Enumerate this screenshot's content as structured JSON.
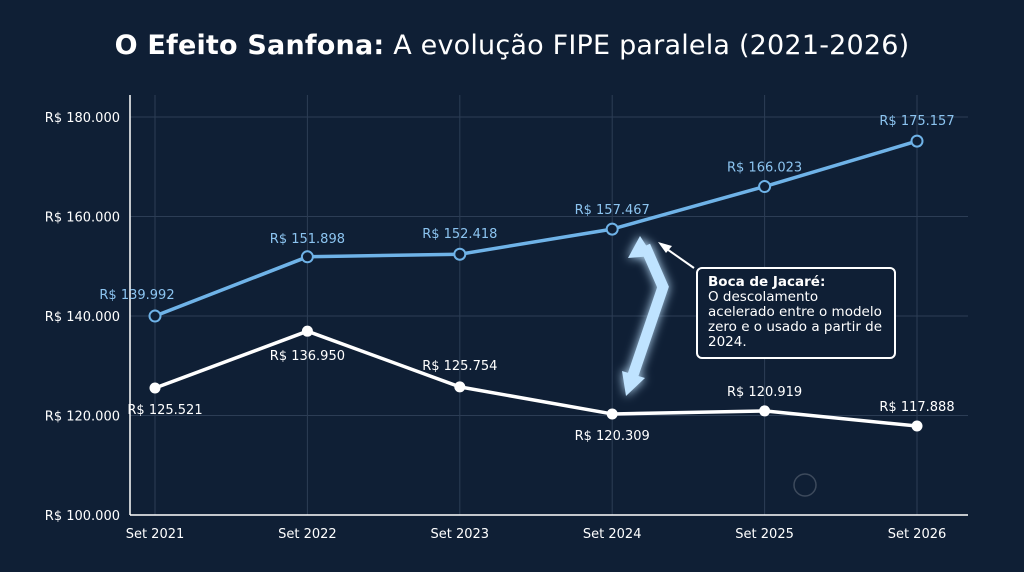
{
  "title": {
    "bold": "O Efeito Sanfona:",
    "rest": " A evolução FIPE paralela (2021-2026)"
  },
  "chart_data": {
    "type": "line",
    "x": [
      "Set 2021",
      "Set 2022",
      "Set 2023",
      "Set 2024",
      "Set 2025",
      "Set 2026"
    ],
    "ylim": [
      100000,
      180000
    ],
    "yticks": [
      "R$ 100.000",
      "R$ 120.000",
      "R$ 140.000",
      "R$ 160.000",
      "R$ 180.000"
    ],
    "ytick_values": [
      100000,
      120000,
      140000,
      160000,
      180000
    ],
    "grid": true,
    "series": [
      {
        "color": "#6fb3e8",
        "values": [
          139992,
          151898,
          152418,
          157467,
          166023,
          175157
        ],
        "labels": [
          "R$ 139.992",
          "R$ 151.898",
          "R$ 152.418",
          "R$ 157.467",
          "R$ 166.023",
          "R$ 175.157"
        ]
      },
      {
        "color": "#ffffff",
        "values": [
          125521,
          136950,
          125754,
          120309,
          120919,
          117888
        ],
        "labels": [
          "R$ 125.521",
          "R$ 136.950",
          "R$ 125.754",
          "R$ 120.309",
          "R$ 120.919",
          "R$ 117.888"
        ]
      }
    ]
  },
  "callout": {
    "heading": "Boca de Jacaré:",
    "text": "O descolamento acelerado entre o modelo zero e o usado a partir de 2024."
  }
}
